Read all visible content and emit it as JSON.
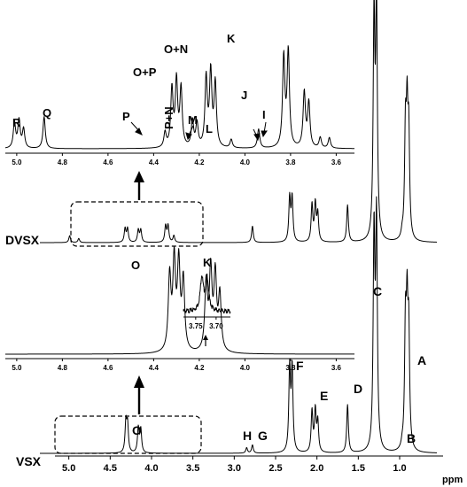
{
  "chart_data": [
    {
      "type": "line",
      "title": "",
      "xlabel": "ppm",
      "ylabel": "",
      "x_reversed": true,
      "xlim": [
        5.35,
        0.55
      ],
      "xticks": [
        "5.0",
        "4.5",
        "4.0",
        "3.5",
        "3.0",
        "2.5",
        "2.0",
        "1.5",
        "1.0"
      ],
      "series": [
        {
          "name": "DVSX",
          "peaks": [
            {
              "ppm": 4.99,
              "height": 0.05
            },
            {
              "ppm": 4.88,
              "height": 0.03
            },
            {
              "ppm": 4.32,
              "height": 0.1
            },
            {
              "ppm": 4.29,
              "height": 0.1
            },
            {
              "ppm": 4.16,
              "height": 0.09
            },
            {
              "ppm": 4.13,
              "height": 0.09
            },
            {
              "ppm": 3.83,
              "height": 0.12
            },
            {
              "ppm": 3.8,
              "height": 0.12
            },
            {
              "ppm": 3.73,
              "height": 0.05
            },
            {
              "ppm": 2.78,
              "height": 0.12
            },
            {
              "ppm": 2.33,
              "height": 0.32
            },
            {
              "ppm": 2.3,
              "height": 0.32
            },
            {
              "ppm": 2.06,
              "height": 0.27
            },
            {
              "ppm": 2.02,
              "height": 0.27
            },
            {
              "ppm": 1.99,
              "height": 0.2
            },
            {
              "ppm": 1.63,
              "height": 0.27
            },
            {
              "ppm": 1.31,
              "height": 1.6
            },
            {
              "ppm": 1.28,
              "height": 1.7
            },
            {
              "ppm": 0.97,
              "height": 0.04
            },
            {
              "ppm": 0.93,
              "height": 0.75
            },
            {
              "ppm": 0.91,
              "height": 0.82
            },
            {
              "ppm": 0.89,
              "height": 0.72
            }
          ]
        },
        {
          "name": "VSX",
          "peaks": [
            {
              "ppm": 4.31,
              "height": 0.22
            },
            {
              "ppm": 4.29,
              "height": 0.2
            },
            {
              "ppm": 4.16,
              "height": 0.18
            },
            {
              "ppm": 4.13,
              "height": 0.17
            },
            {
              "ppm": 2.85,
              "height": 0.04
            },
            {
              "ppm": 2.78,
              "height": 0.06
            },
            {
              "ppm": 2.33,
              "height": 0.6
            },
            {
              "ppm": 2.3,
              "height": 0.6
            },
            {
              "ppm": 2.06,
              "height": 0.3
            },
            {
              "ppm": 2.02,
              "height": 0.3
            },
            {
              "ppm": 1.99,
              "height": 0.22
            },
            {
              "ppm": 1.63,
              "height": 0.35
            },
            {
              "ppm": 1.31,
              "height": 1.55
            },
            {
              "ppm": 1.28,
              "height": 1.65
            },
            {
              "ppm": 0.97,
              "height": 0.03
            },
            {
              "ppm": 0.93,
              "height": 0.85
            },
            {
              "ppm": 0.91,
              "height": 0.9
            },
            {
              "ppm": 0.89,
              "height": 0.8
            }
          ]
        }
      ]
    },
    {
      "type": "line",
      "title": "",
      "xlabel": "",
      "ylabel": "",
      "x_reversed": true,
      "xlim": [
        5.05,
        3.52
      ],
      "xticks": [
        "5.0",
        "4.8",
        "4.6",
        "4.4",
        "4.2",
        "4.0",
        "3.8",
        "3.6"
      ],
      "series": [
        {
          "name": "DVSX",
          "peaks": [
            {
              "ppm": 5.01,
              "height": 0.24
            },
            {
              "ppm": 4.99,
              "height": 0.26
            },
            {
              "ppm": 4.97,
              "height": 0.18
            },
            {
              "ppm": 4.88,
              "height": 0.3
            },
            {
              "ppm": 4.35,
              "height": 0.14
            },
            {
              "ppm": 4.32,
              "height": 0.55
            },
            {
              "ppm": 4.3,
              "height": 0.62
            },
            {
              "ppm": 4.28,
              "height": 0.55
            },
            {
              "ppm": 4.23,
              "height": 0.25
            },
            {
              "ppm": 4.21,
              "height": 0.22
            },
            {
              "ppm": 4.17,
              "height": 0.65
            },
            {
              "ppm": 4.15,
              "height": 0.7
            },
            {
              "ppm": 4.13,
              "height": 0.6
            },
            {
              "ppm": 4.06,
              "height": 0.08
            },
            {
              "ppm": 3.94,
              "height": 0.18
            },
            {
              "ppm": 3.83,
              "height": 0.85
            },
            {
              "ppm": 3.81,
              "height": 0.9
            },
            {
              "ppm": 3.74,
              "height": 0.52
            },
            {
              "ppm": 3.72,
              "height": 0.42
            },
            {
              "ppm": 3.67,
              "height": 0.1
            },
            {
              "ppm": 3.63,
              "height": 0.1
            }
          ]
        }
      ]
    },
    {
      "type": "line",
      "title": "",
      "xlabel": "",
      "ylabel": "",
      "x_reversed": true,
      "xlim": [
        5.05,
        3.52
      ],
      "xticks": [
        "5.0",
        "4.8",
        "4.6",
        "4.4",
        "4.2",
        "4.0",
        "3.8",
        "3.6"
      ],
      "series": [
        {
          "name": "VSX",
          "peaks": [
            {
              "ppm": 4.33,
              "height": 0.8
            },
            {
              "ppm": 4.31,
              "height": 0.95
            },
            {
              "ppm": 4.29,
              "height": 0.92
            },
            {
              "ppm": 4.27,
              "height": 0.75
            },
            {
              "ppm": 4.17,
              "height": 0.72
            },
            {
              "ppm": 4.15,
              "height": 0.85
            },
            {
              "ppm": 4.13,
              "height": 0.8
            },
            {
              "ppm": 4.11,
              "height": 0.6
            }
          ]
        }
      ]
    },
    {
      "type": "line",
      "title": "",
      "xlabel": "",
      "ylabel": "",
      "x_reversed": true,
      "xlim": [
        3.78,
        3.665
      ],
      "xticks": [
        "3.75",
        "3.70"
      ],
      "series": [
        {
          "name": "VSX",
          "peaks": [
            {
              "ppm": 3.735,
              "height": 0.9
            },
            {
              "ppm": 3.722,
              "height": 0.88
            }
          ]
        }
      ]
    }
  ],
  "labels": {
    "main_peaks": {
      "a": "A",
      "b": "B",
      "c": "C",
      "d": "D",
      "e": "E",
      "f": "F",
      "g": "G",
      "h": "H",
      "o": "O"
    },
    "inset_dvsx_peaks": {
      "r": "R",
      "q": "Q",
      "p": "P",
      "o_p": "O+P",
      "p_n": "P+N",
      "o_n": "O+N",
      "m": "M",
      "l": "L",
      "k": "K",
      "j": "J",
      "i": "I"
    },
    "inset_vsx_peaks": {
      "o": "O",
      "k": "K"
    }
  },
  "colors": {
    "trace": "#000000",
    "background": "#ffffff"
  }
}
